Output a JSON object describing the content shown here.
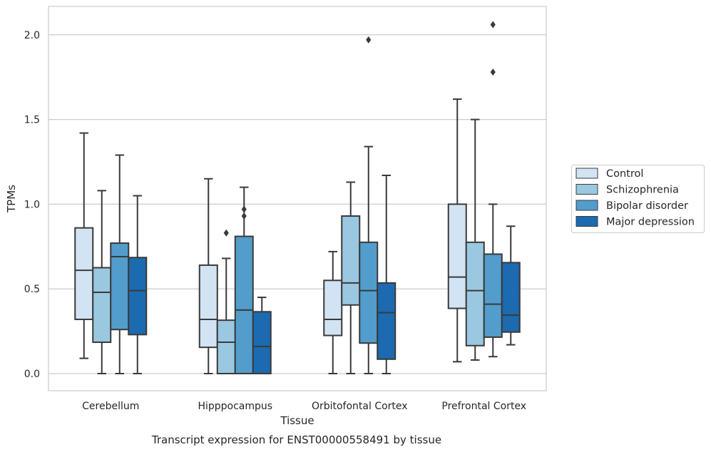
{
  "caption": "Transcript expression for ENST00000558491 by tissue",
  "chart_data": {
    "type": "box",
    "xlabel": "Tissue",
    "ylabel": "TPMs",
    "ylim": [
      -0.1,
      2.17
    ],
    "yticks": [
      "0.0",
      "0.5",
      "1.0",
      "1.5",
      "2.0"
    ],
    "grid": true,
    "legend_position": "right",
    "categories": [
      "Cerebellum",
      "Hipppocampus",
      "Orbitofontal Cortex",
      "Prefrontal Cortex"
    ],
    "series": [
      {
        "name": "Control",
        "color": "#d2e3f3",
        "boxes": [
          {
            "whislo": 0.09,
            "q1": 0.32,
            "med": 0.61,
            "q3": 0.86,
            "whishi": 1.42,
            "fliers": []
          },
          {
            "whislo": 0.0,
            "q1": 0.155,
            "med": 0.32,
            "q3": 0.64,
            "whishi": 1.15,
            "fliers": []
          },
          {
            "whislo": 0.0,
            "q1": 0.225,
            "med": 0.32,
            "q3": 0.55,
            "whishi": 0.72,
            "fliers": []
          },
          {
            "whislo": 0.07,
            "q1": 0.385,
            "med": 0.57,
            "q3": 1.0,
            "whishi": 1.62,
            "fliers": []
          }
        ]
      },
      {
        "name": "Schizophrenia",
        "color": "#9ac8e0",
        "boxes": [
          {
            "whislo": 0.0,
            "q1": 0.185,
            "med": 0.48,
            "q3": 0.625,
            "whishi": 1.08,
            "fliers": []
          },
          {
            "whislo": 0.0,
            "q1": 0.0,
            "med": 0.185,
            "q3": 0.315,
            "whishi": 0.68,
            "fliers": [
              0.83
            ]
          },
          {
            "whislo": 0.0,
            "q1": 0.405,
            "med": 0.535,
            "q3": 0.93,
            "whishi": 1.13,
            "fliers": []
          },
          {
            "whislo": 0.08,
            "q1": 0.165,
            "med": 0.49,
            "q3": 0.775,
            "whishi": 1.5,
            "fliers": []
          }
        ]
      },
      {
        "name": "Bipolar disorder",
        "color": "#529dcc",
        "boxes": [
          {
            "whislo": 0.0,
            "q1": 0.26,
            "med": 0.69,
            "q3": 0.77,
            "whishi": 1.29,
            "fliers": []
          },
          {
            "whislo": 0.0,
            "q1": 0.0,
            "med": 0.375,
            "q3": 0.81,
            "whishi": 1.1,
            "fliers": [
              0.93,
              0.97
            ]
          },
          {
            "whislo": 0.0,
            "q1": 0.18,
            "med": 0.49,
            "q3": 0.775,
            "whishi": 1.34,
            "fliers": [
              1.97
            ]
          },
          {
            "whislo": 0.1,
            "q1": 0.215,
            "med": 0.41,
            "q3": 0.705,
            "whishi": 1.0,
            "fliers": [
              1.78,
              2.06
            ]
          }
        ]
      },
      {
        "name": "Major depression",
        "color": "#1c6aaf",
        "boxes": [
          {
            "whislo": 0.0,
            "q1": 0.23,
            "med": 0.49,
            "q3": 0.685,
            "whishi": 1.05,
            "fliers": []
          },
          {
            "whislo": 0.0,
            "q1": 0.0,
            "med": 0.16,
            "q3": 0.365,
            "whishi": 0.45,
            "fliers": []
          },
          {
            "whislo": 0.0,
            "q1": 0.085,
            "med": 0.36,
            "q3": 0.535,
            "whishi": 1.17,
            "fliers": []
          },
          {
            "whislo": 0.17,
            "q1": 0.245,
            "med": 0.345,
            "q3": 0.655,
            "whishi": 0.87,
            "fliers": []
          }
        ]
      }
    ]
  }
}
